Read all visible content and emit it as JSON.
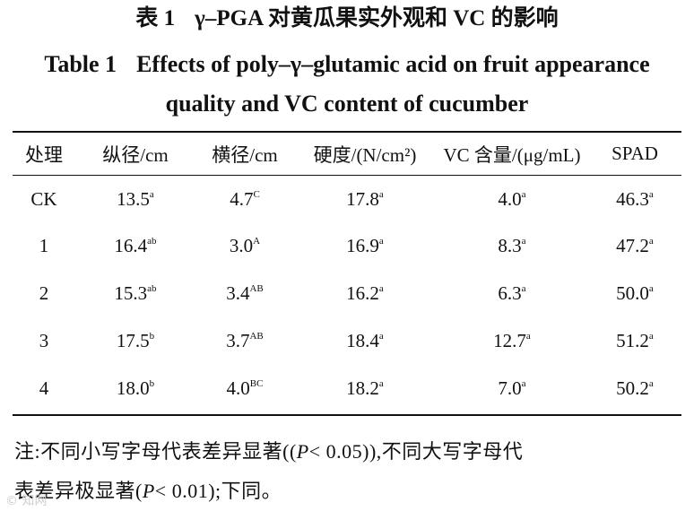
{
  "title_cn": {
    "number": "表 1",
    "text": "γ–PGA 对黄瓜果实外观和 VC 的影响"
  },
  "title_en": {
    "number": "Table 1",
    "line1": "Effects of poly–γ–glutamic acid on fruit appearance",
    "line2": "quality and VC content of cucumber"
  },
  "table": {
    "headers": [
      "处理",
      "纵径/cm",
      "横径/cm",
      "硬度/(N/cm²)",
      "VC 含量/(μg/mL)",
      "SPAD"
    ],
    "rows": [
      [
        {
          "v": "CK"
        },
        {
          "v": "13.5",
          "s": "a"
        },
        {
          "v": "4.7",
          "s": "C"
        },
        {
          "v": "17.8",
          "s": "a"
        },
        {
          "v": "4.0",
          "s": "a"
        },
        {
          "v": "46.3",
          "s": "a"
        }
      ],
      [
        {
          "v": "1"
        },
        {
          "v": "16.4",
          "s": "ab"
        },
        {
          "v": "3.0",
          "s": "A"
        },
        {
          "v": "16.9",
          "s": "a"
        },
        {
          "v": "8.3",
          "s": "a"
        },
        {
          "v": "47.2",
          "s": "a"
        }
      ],
      [
        {
          "v": "2"
        },
        {
          "v": "15.3",
          "s": "ab"
        },
        {
          "v": "3.4",
          "s": "AB"
        },
        {
          "v": "16.2",
          "s": "a"
        },
        {
          "v": "6.3",
          "s": "a"
        },
        {
          "v": "50.0",
          "s": "a"
        }
      ],
      [
        {
          "v": "3"
        },
        {
          "v": "17.5",
          "s": "b"
        },
        {
          "v": "3.7",
          "s": "AB"
        },
        {
          "v": "18.4",
          "s": "a"
        },
        {
          "v": "12.7",
          "s": "a"
        },
        {
          "v": "51.2",
          "s": "a"
        }
      ],
      [
        {
          "v": "4"
        },
        {
          "v": "18.0",
          "s": "b"
        },
        {
          "v": "4.0",
          "s": "BC"
        },
        {
          "v": "18.2",
          "s": "a"
        },
        {
          "v": "7.0",
          "s": "a"
        },
        {
          "v": "50.2",
          "s": "a"
        }
      ]
    ]
  },
  "note": {
    "line1_prefix": "注:不同小写字母代表差异显著((",
    "p1": "P",
    "line1_value": "< 0.05",
    "line1_suffix": ")),不同大写字母代",
    "line2_prefix": "表差异极显著(",
    "p2": "P",
    "line2_value": "< 0.01",
    "line2_suffix": ");下同。"
  },
  "watermark": "© 知网"
}
